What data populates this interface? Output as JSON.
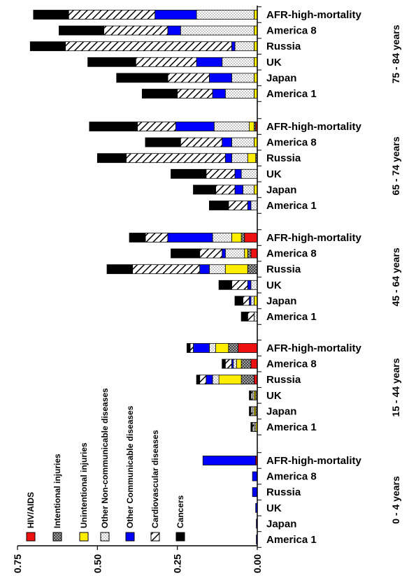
{
  "chart_data": {
    "type": "bar",
    "orientation": "horizontal",
    "stacked": true,
    "x_axis_reversed": true,
    "xlim": [
      0,
      0.75
    ],
    "xticks": [
      0.75,
      0.5,
      0.25,
      0.0
    ],
    "tick_labels": [
      "0.75",
      "0.50",
      "0.25",
      "0.00"
    ],
    "grid": false,
    "legend_position": "bottom-left",
    "categories": [
      "AFR-high-mortality",
      "America 8",
      "Russia",
      "UK",
      "Japan",
      "America 1"
    ],
    "series": [
      {
        "name": "HIV/AIDS",
        "color": "#ee1111",
        "pattern": "solid"
      },
      {
        "name": "Intentional injuries",
        "color": "#cccccc",
        "pattern": "crosshatch"
      },
      {
        "name": "Unintentional injuries",
        "color": "#ffee00",
        "pattern": "solid"
      },
      {
        "name": "Other Non-communicable diseases",
        "color": "#ffffff",
        "pattern": "dots"
      },
      {
        "name": "Other Communicable diseases",
        "color": "#0000ff",
        "pattern": "solid"
      },
      {
        "name": "Cardiovascular diseases",
        "color": "#ffffff",
        "pattern": "diagonal"
      },
      {
        "name": "Cancers",
        "color": "#000000",
        "pattern": "solid"
      }
    ],
    "age_groups": [
      {
        "label": "75 - 84 years",
        "rows": [
          {
            "category": "AFR-high-mortality",
            "values": [
              0.0,
              0.0,
              0.01,
              0.18,
              0.13,
              0.27,
              0.11
            ]
          },
          {
            "category": "America 8",
            "values": [
              0.0,
              0.0,
              0.01,
              0.23,
              0.04,
              0.2,
              0.14
            ]
          },
          {
            "category": "Russia",
            "values": [
              0.0,
              0.0,
              0.01,
              0.06,
              0.01,
              0.52,
              0.11
            ]
          },
          {
            "category": "UK",
            "values": [
              0.0,
              0.0,
              0.01,
              0.1,
              0.08,
              0.19,
              0.15
            ]
          },
          {
            "category": "Japan",
            "values": [
              0.0,
              0.0,
              0.01,
              0.07,
              0.07,
              0.13,
              0.16
            ]
          },
          {
            "category": "America 1",
            "values": [
              0.0,
              0.0,
              0.01,
              0.09,
              0.04,
              0.11,
              0.11
            ]
          }
        ]
      },
      {
        "label": "65 - 74 years",
        "rows": [
          {
            "category": "AFR-high-mortality",
            "values": [
              0.005,
              0.005,
              0.015,
              0.11,
              0.12,
              0.12,
              0.15
            ]
          },
          {
            "category": "America 8",
            "values": [
              0.0,
              0.0,
              0.01,
              0.07,
              0.03,
              0.13,
              0.11
            ]
          },
          {
            "category": "Russia",
            "values": [
              0.0,
              0.005,
              0.025,
              0.05,
              0.02,
              0.31,
              0.09
            ]
          },
          {
            "category": "UK",
            "values": [
              0.0,
              0.0,
              0.0,
              0.05,
              0.02,
              0.09,
              0.11
            ]
          },
          {
            "category": "Japan",
            "values": [
              0.0,
              0.0,
              0.01,
              0.035,
              0.025,
              0.06,
              0.07
            ]
          },
          {
            "category": "America 1",
            "values": [
              0.0,
              0.0,
              0.0,
              0.02,
              0.01,
              0.06,
              0.06
            ]
          }
        ]
      },
      {
        "label": "45 - 64 years",
        "rows": [
          {
            "category": "AFR-high-mortality",
            "values": [
              0.04,
              0.01,
              0.03,
              0.06,
              0.14,
              0.07,
              0.05
            ]
          },
          {
            "category": "America 8",
            "values": [
              0.02,
              0.01,
              0.01,
              0.06,
              0.01,
              0.07,
              0.09
            ]
          },
          {
            "category": "Russia",
            "values": [
              0.0,
              0.03,
              0.07,
              0.05,
              0.03,
              0.21,
              0.08
            ]
          },
          {
            "category": "UK",
            "values": [
              0.0,
              0.0,
              0.0,
              0.02,
              0.01,
              0.05,
              0.04
            ]
          },
          {
            "category": "Japan",
            "values": [
              0.0,
              0.0,
              0.01,
              0.01,
              0.005,
              0.02,
              0.025
            ]
          },
          {
            "category": "America 1",
            "values": [
              0.0,
              0.0,
              0.0,
              0.01,
              0.0,
              0.02,
              0.02
            ]
          }
        ]
      },
      {
        "label": "15 - 44 years",
        "rows": [
          {
            "category": "AFR-high-mortality",
            "values": [
              0.06,
              0.03,
              0.04,
              0.02,
              0.05,
              0.01,
              0.01
            ]
          },
          {
            "category": "America 8",
            "values": [
              0.02,
              0.03,
              0.015,
              0.01,
              0.005,
              0.02,
              0.01
            ]
          },
          {
            "category": "Russia",
            "values": [
              0.01,
              0.04,
              0.07,
              0.02,
              0.02,
              0.02,
              0.01
            ]
          },
          {
            "category": "UK",
            "values": [
              0.0,
              0.005,
              0.005,
              0.005,
              0.0,
              0.005,
              0.005
            ]
          },
          {
            "category": "Japan",
            "values": [
              0.0,
              0.005,
              0.005,
              0.005,
              0.0,
              0.005,
              0.005
            ]
          },
          {
            "category": "America 1",
            "values": [
              0.0,
              0.0,
              0.005,
              0.005,
              0.0,
              0.005,
              0.005
            ]
          }
        ]
      },
      {
        "label": "0 - 4 years",
        "rows": [
          {
            "category": "AFR-high-mortality",
            "values": [
              0.005,
              0.0,
              0.0,
              0.0,
              0.165,
              0.0,
              0.0
            ]
          },
          {
            "category": "America 8",
            "values": [
              0.0,
              0.0,
              0.0,
              0.0,
              0.015,
              0.0,
              0.0
            ]
          },
          {
            "category": "Russia",
            "values": [
              0.0,
              0.0,
              0.0,
              0.0,
              0.015,
              0.0,
              0.0
            ]
          },
          {
            "category": "UK",
            "values": [
              0.0,
              0.0,
              0.0,
              0.0,
              0.005,
              0.0,
              0.0
            ]
          },
          {
            "category": "Japan",
            "values": [
              0.0,
              0.0,
              0.0,
              0.0,
              0.003,
              0.0,
              0.0
            ]
          },
          {
            "category": "America 1",
            "values": [
              0.0,
              0.0,
              0.0,
              0.0,
              0.003,
              0.0,
              0.0
            ]
          }
        ]
      }
    ]
  }
}
